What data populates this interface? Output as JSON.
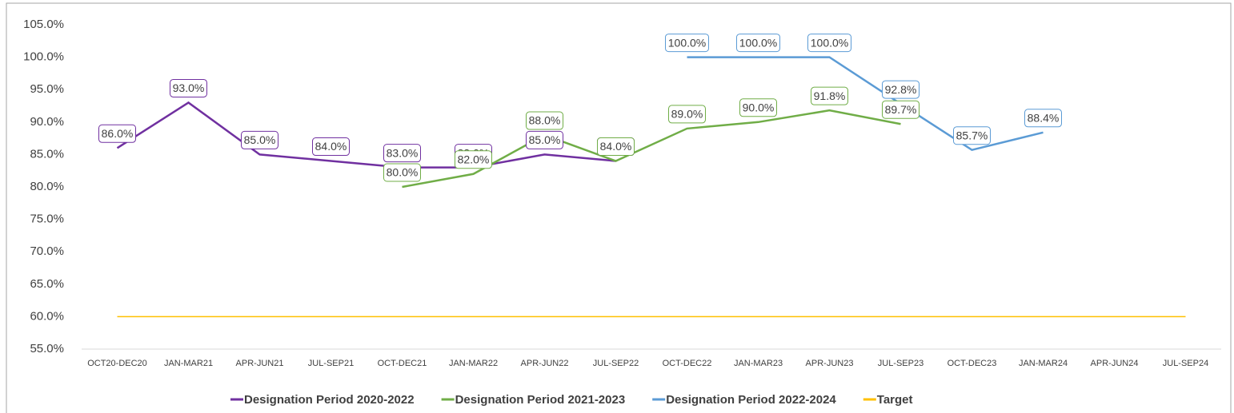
{
  "chart_data": {
    "type": "line",
    "categories": [
      "OCT20-DEC20",
      "JAN-MAR21",
      "APR-JUN21",
      "JUL-SEP21",
      "OCT-DEC21",
      "JAN-MAR22",
      "APR-JUN22",
      "JUL-SEP22",
      "OCT-DEC22",
      "JAN-MAR23",
      "APR-JUN23",
      "JUL-SEP23",
      "OCT-DEC23",
      "JAN-MAR24",
      "APR-JUN24",
      "JUL-SEP24"
    ],
    "series": [
      {
        "name": "Designation Period 2020-2022",
        "color": "#7030a0",
        "values": [
          86,
          93,
          85,
          84,
          83,
          83,
          85,
          84,
          null,
          null,
          null,
          null,
          null,
          null,
          null,
          null
        ],
        "value_labels": [
          "86.0%",
          "93.0%",
          "85.0%",
          "84.0%",
          "83.0%",
          "83.0%",
          "85.0%",
          "84.0%",
          null,
          null,
          null,
          null,
          null,
          null,
          null,
          null
        ]
      },
      {
        "name": "Designation Period 2021-2023",
        "color": "#70ad47",
        "values": [
          null,
          null,
          null,
          null,
          80,
          82,
          88,
          84,
          89,
          90,
          91.8,
          89.7,
          null,
          null,
          null,
          null
        ],
        "value_labels": [
          null,
          null,
          null,
          null,
          "80.0%",
          "82.0%",
          "88.0%",
          "84.0%",
          "89.0%",
          "90.0%",
          "91.8%",
          "89.7%",
          null,
          null,
          null,
          null
        ]
      },
      {
        "name": "Designation Period 2022-2024",
        "color": "#5b9bd5",
        "values": [
          null,
          null,
          null,
          null,
          null,
          null,
          null,
          null,
          100,
          100,
          100,
          92.8,
          85.7,
          88.4,
          null,
          null
        ],
        "value_labels": [
          null,
          null,
          null,
          null,
          null,
          null,
          null,
          null,
          "100.0%",
          "100.0%",
          "100.0%",
          "92.8%",
          "85.7%",
          "88.4%",
          null,
          null
        ]
      },
      {
        "name": "Target",
        "color": "#ffc000",
        "values": [
          60,
          60,
          60,
          60,
          60,
          60,
          60,
          60,
          60,
          60,
          60,
          60,
          60,
          60,
          60,
          60
        ]
      }
    ],
    "ylim": [
      55,
      105
    ],
    "yticks": [
      {
        "value": 55,
        "label": "55.0%"
      },
      {
        "value": 60,
        "label": "60.0%"
      },
      {
        "value": 65,
        "label": "65.0%"
      },
      {
        "value": 70,
        "label": "70.0%"
      },
      {
        "value": 75,
        "label": "75.0%"
      },
      {
        "value": 80,
        "label": "80.0%"
      },
      {
        "value": 85,
        "label": "85.0%"
      },
      {
        "value": 90,
        "label": "90.0%"
      },
      {
        "value": 95,
        "label": "95.0%"
      },
      {
        "value": 100,
        "label": "100.0%"
      },
      {
        "value": 105,
        "label": "105.0%"
      }
    ],
    "legend": "bottom"
  }
}
